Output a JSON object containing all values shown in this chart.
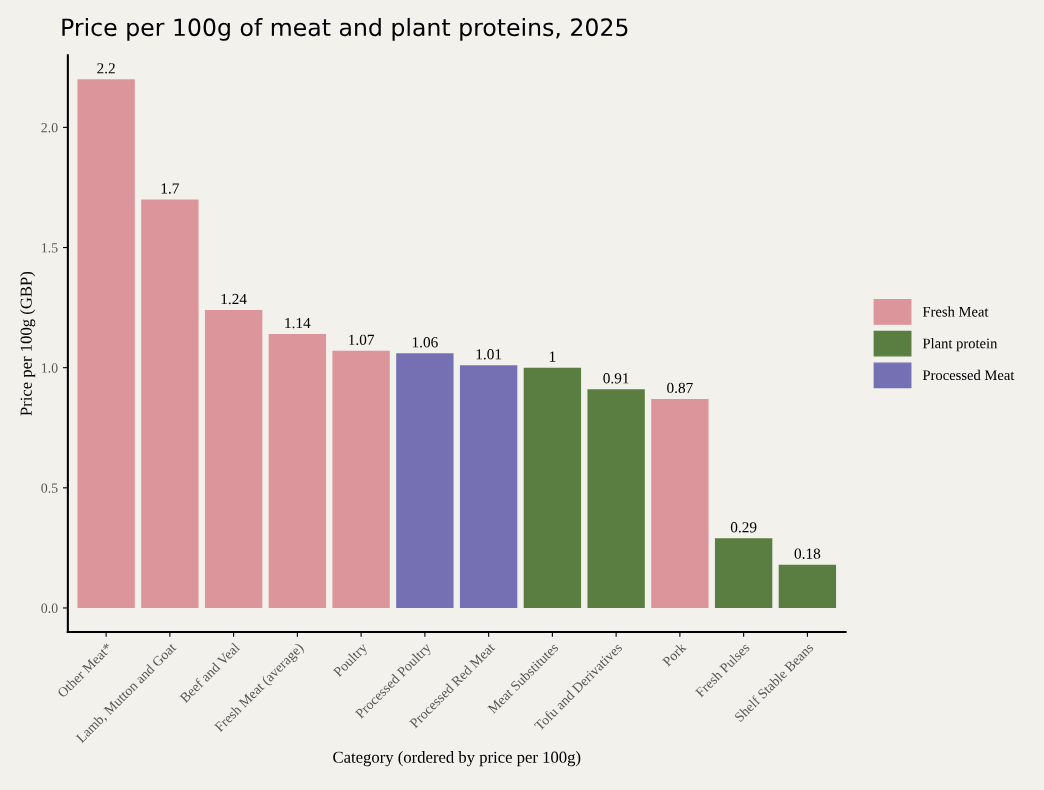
{
  "chart_data": {
    "type": "bar",
    "title": "Price per 100g of meat and plant proteins, 2025",
    "xlabel": "Category (ordered by price per 100g)",
    "ylabel": "Price per 100g (GBP)",
    "categories": [
      "Other Meat*",
      "Lamb, Mutton and Goat",
      "Beef and Veal",
      "Fresh Meat (average)",
      "Poultry",
      "Processed Poultry",
      "Processed Red Meat",
      "Meat Substitutes",
      "Tofu and Derivatives",
      "Pork",
      "Fresh Pulses",
      "Shelf Stable Beans"
    ],
    "series": [
      {
        "name": "Fresh Meat",
        "color": "#dc969b",
        "values": [
          2.2,
          1.7,
          1.24,
          1.14,
          1.07,
          null,
          null,
          null,
          null,
          0.87,
          null,
          null
        ]
      },
      {
        "name": "Plant protein",
        "color": "#5a7d41",
        "values": [
          null,
          null,
          null,
          null,
          null,
          null,
          null,
          1,
          0.91,
          null,
          0.29,
          0.18
        ]
      },
      {
        "name": "Processed Meat",
        "color": "#7570b3",
        "values": [
          null,
          null,
          null,
          null,
          null,
          1.06,
          1.01,
          null,
          null,
          null,
          null,
          null
        ]
      }
    ],
    "data_labels": true,
    "ylim": [
      -0.1,
      2.3
    ],
    "yticks": [
      {
        "value": 0,
        "label": "0.0"
      },
      {
        "value": 0.5,
        "label": "0.5"
      },
      {
        "value": 1,
        "label": "1.0"
      },
      {
        "value": 1.5,
        "label": "1.5"
      },
      {
        "value": 2,
        "label": "2.0"
      }
    ],
    "grid": false,
    "legend": "right"
  }
}
